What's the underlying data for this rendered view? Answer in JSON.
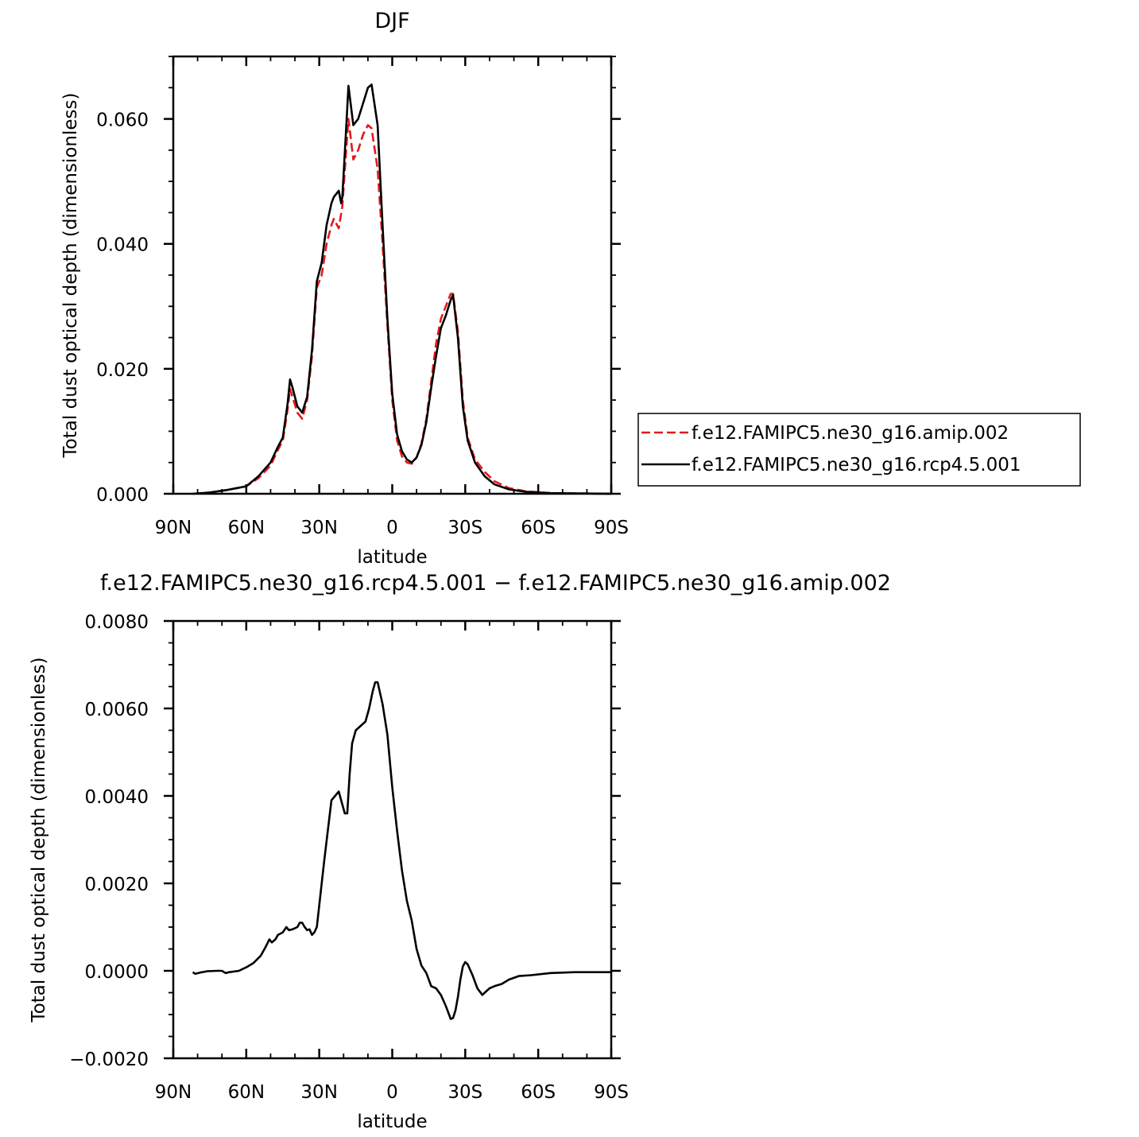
{
  "chart_data": [
    {
      "type": "line",
      "title": "DJF",
      "xlabel": "latitude",
      "ylabel": "Total dust optical depth (dimensionless)",
      "xlim": [
        90,
        -90
      ],
      "ylim": [
        0,
        0.07
      ],
      "x_ticks": [
        {
          "value": 90,
          "label": "90N"
        },
        {
          "value": 60,
          "label": "60N"
        },
        {
          "value": 30,
          "label": "30N"
        },
        {
          "value": 0,
          "label": "0"
        },
        {
          "value": -30,
          "label": "30S"
        },
        {
          "value": -60,
          "label": "60S"
        },
        {
          "value": -90,
          "label": "90S"
        }
      ],
      "y_ticks": [
        {
          "value": 0.0,
          "label": "0.000"
        },
        {
          "value": 0.02,
          "label": "0.020"
        },
        {
          "value": 0.04,
          "label": "0.040"
        },
        {
          "value": 0.06,
          "label": "0.060"
        }
      ],
      "legend_position": "right",
      "series": [
        {
          "name": "f.e12.FAMIPC5.ne30_g16.amip.002",
          "color": "#e41a1c",
          "dash": "dashed",
          "points": [
            [
              82,
              0.0
            ],
            [
              75,
              0.0002
            ],
            [
              68,
              0.0006
            ],
            [
              60,
              0.0012
            ],
            [
              55,
              0.0025
            ],
            [
              50,
              0.0045
            ],
            [
              47,
              0.007
            ],
            [
              45,
              0.0085
            ],
            [
              43,
              0.0135
            ],
            [
              42,
              0.0168
            ],
            [
              41,
              0.0155
            ],
            [
              39,
              0.013
            ],
            [
              37,
              0.012
            ],
            [
              35,
              0.015
            ],
            [
              33,
              0.022
            ],
            [
              31,
              0.033
            ],
            [
              29,
              0.035
            ],
            [
              27,
              0.04
            ],
            [
              25,
              0.043
            ],
            [
              24,
              0.044
            ],
            [
              22,
              0.0425
            ],
            [
              20.5,
              0.046
            ],
            [
              19,
              0.0545
            ],
            [
              18,
              0.06
            ],
            [
              16,
              0.0535
            ],
            [
              14,
              0.055
            ],
            [
              12,
              0.0575
            ],
            [
              10,
              0.059
            ],
            [
              8.5,
              0.0585
            ],
            [
              6,
              0.052
            ],
            [
              4,
              0.04
            ],
            [
              2,
              0.027
            ],
            [
              0,
              0.015
            ],
            [
              -2,
              0.0085
            ],
            [
              -4,
              0.006
            ],
            [
              -6,
              0.005
            ],
            [
              -8,
              0.0048
            ],
            [
              -10,
              0.0058
            ],
            [
              -12,
              0.008
            ],
            [
              -14,
              0.012
            ],
            [
              -16,
              0.018
            ],
            [
              -18,
              0.024
            ],
            [
              -20,
              0.028
            ],
            [
              -22,
              0.03
            ],
            [
              -24,
              0.032
            ],
            [
              -25,
              0.032
            ],
            [
              -27,
              0.026
            ],
            [
              -29,
              0.015
            ],
            [
              -31,
              0.009
            ],
            [
              -34,
              0.0055
            ],
            [
              -38,
              0.0035
            ],
            [
              -42,
              0.002
            ],
            [
              -48,
              0.0009
            ],
            [
              -55,
              0.0004
            ],
            [
              -65,
              0.0001
            ],
            [
              -90,
              0.0
            ]
          ]
        },
        {
          "name": "f.e12.FAMIPC5.ne30_g16.rcp4.5.001",
          "color": "#000000",
          "dash": "solid",
          "points": [
            [
              82,
              0.0
            ],
            [
              75,
              0.0002
            ],
            [
              68,
              0.0006
            ],
            [
              60,
              0.0012
            ],
            [
              55,
              0.0028
            ],
            [
              50,
              0.005
            ],
            [
              47,
              0.0075
            ],
            [
              45,
              0.009
            ],
            [
              43,
              0.0145
            ],
            [
              42,
              0.0183
            ],
            [
              41,
              0.017
            ],
            [
              39,
              0.014
            ],
            [
              37,
              0.013
            ],
            [
              35,
              0.0155
            ],
            [
              33,
              0.023
            ],
            [
              31,
              0.034
            ],
            [
              29,
              0.037
            ],
            [
              27,
              0.043
            ],
            [
              25,
              0.0465
            ],
            [
              24,
              0.0475
            ],
            [
              22,
              0.0485
            ],
            [
              21,
              0.0465
            ],
            [
              20.5,
              0.0475
            ],
            [
              19,
              0.058
            ],
            [
              18,
              0.0653
            ],
            [
              16,
              0.059
            ],
            [
              14,
              0.06
            ],
            [
              12,
              0.0625
            ],
            [
              10,
              0.065
            ],
            [
              8.5,
              0.0655
            ],
            [
              6,
              0.059
            ],
            [
              4,
              0.043
            ],
            [
              2,
              0.028
            ],
            [
              0,
              0.016
            ],
            [
              -2,
              0.0095
            ],
            [
              -4,
              0.0068
            ],
            [
              -6,
              0.0055
            ],
            [
              -8,
              0.005
            ],
            [
              -10,
              0.0058
            ],
            [
              -12,
              0.0078
            ],
            [
              -14,
              0.0115
            ],
            [
              -16,
              0.017
            ],
            [
              -18,
              0.022
            ],
            [
              -20,
              0.0265
            ],
            [
              -22,
              0.0285
            ],
            [
              -24,
              0.031
            ],
            [
              -25,
              0.0318
            ],
            [
              -27,
              0.025
            ],
            [
              -29,
              0.014
            ],
            [
              -31,
              0.0085
            ],
            [
              -34,
              0.005
            ],
            [
              -38,
              0.0028
            ],
            [
              -42,
              0.0015
            ],
            [
              -48,
              0.0007
            ],
            [
              -55,
              0.0003
            ],
            [
              -65,
              0.0001
            ],
            [
              -90,
              0.0
            ]
          ]
        }
      ]
    },
    {
      "type": "line",
      "title": "f.e12.FAMIPC5.ne30_g16.rcp4.5.001 − f.e12.FAMIPC5.ne30_g16.amip.002",
      "xlabel": "latitude",
      "ylabel": "Total dust optical depth (dimensionless)",
      "xlim": [
        90,
        -90
      ],
      "ylim": [
        -0.002,
        0.008
      ],
      "x_ticks": [
        {
          "value": 90,
          "label": "90N"
        },
        {
          "value": 60,
          "label": "60N"
        },
        {
          "value": 30,
          "label": "30N"
        },
        {
          "value": 0,
          "label": "0"
        },
        {
          "value": -30,
          "label": "30S"
        },
        {
          "value": -60,
          "label": "60S"
        },
        {
          "value": -90,
          "label": "90S"
        }
      ],
      "y_ticks": [
        {
          "value": -0.002,
          "label": "−0.0020"
        },
        {
          "value": 0.0,
          "label": "0.0000"
        },
        {
          "value": 0.002,
          "label": "0.0020"
        },
        {
          "value": 0.004,
          "label": "0.0040"
        },
        {
          "value": 0.006,
          "label": "0.0060"
        },
        {
          "value": 0.008,
          "label": "0.0080"
        }
      ],
      "series": [
        {
          "name": "",
          "color": "#000000",
          "dash": "solid",
          "points": [
            [
              82,
              -3e-05
            ],
            [
              81,
              -7e-05
            ],
            [
              79,
              -4e-05
            ],
            [
              76,
              -1e-05
            ],
            [
              72,
              0.0
            ],
            [
              70,
              0.0
            ],
            [
              68.5,
              -5e-05
            ],
            [
              67,
              -3e-05
            ],
            [
              63,
              0.0
            ],
            [
              60,
              8e-05
            ],
            [
              57,
              0.00018
            ],
            [
              54,
              0.00035
            ],
            [
              52,
              0.00055
            ],
            [
              50.5,
              0.00072
            ],
            [
              49.5,
              0.00065
            ],
            [
              48,
              0.00072
            ],
            [
              47,
              0.00082
            ],
            [
              45,
              0.00088
            ],
            [
              43.5,
              0.001
            ],
            [
              42.5,
              0.00093
            ],
            [
              41,
              0.00095
            ],
            [
              39,
              0.001
            ],
            [
              38,
              0.0011
            ],
            [
              37,
              0.0011
            ],
            [
              36,
              0.001
            ],
            [
              35,
              0.00093
            ],
            [
              34,
              0.00095
            ],
            [
              33,
              0.00082
            ],
            [
              32,
              0.00088
            ],
            [
              31,
              0.001
            ],
            [
              28,
              0.0025
            ],
            [
              25,
              0.0039
            ],
            [
              23.5,
              0.004
            ],
            [
              22,
              0.0041
            ],
            [
              21,
              0.0039
            ],
            [
              19.5,
              0.0036
            ],
            [
              18.5,
              0.0036
            ],
            [
              17.5,
              0.0045
            ],
            [
              16.5,
              0.0052
            ],
            [
              15,
              0.0055
            ],
            [
              13,
              0.0056
            ],
            [
              11,
              0.0057
            ],
            [
              9.5,
              0.006
            ],
            [
              8,
              0.0064
            ],
            [
              7,
              0.0066
            ],
            [
              6,
              0.0066
            ],
            [
              4,
              0.0061
            ],
            [
              2,
              0.0054
            ],
            [
              0,
              0.0042
            ],
            [
              -2,
              0.0032
            ],
            [
              -4,
              0.0023
            ],
            [
              -6,
              0.0016
            ],
            [
              -8,
              0.00115
            ],
            [
              -10,
              0.0005
            ],
            [
              -12,
              0.00012
            ],
            [
              -14,
              -5e-05
            ],
            [
              -16,
              -0.00035
            ],
            [
              -18,
              -0.0004
            ],
            [
              -20,
              -0.00055
            ],
            [
              -22,
              -0.0008
            ],
            [
              -24,
              -0.0011
            ],
            [
              -25,
              -0.00108
            ],
            [
              -26,
              -0.0009
            ],
            [
              -27,
              -0.0006
            ],
            [
              -28,
              -0.0002
            ],
            [
              -29,
              0.0001
            ],
            [
              -30,
              0.0002
            ],
            [
              -31,
              0.00015
            ],
            [
              -33,
              -0.0001
            ],
            [
              -35,
              -0.0004
            ],
            [
              -37,
              -0.00055
            ],
            [
              -38,
              -0.0005
            ],
            [
              -40,
              -0.0004
            ],
            [
              -42,
              -0.00035
            ],
            [
              -45,
              -0.0003
            ],
            [
              -48,
              -0.0002
            ],
            [
              -52,
              -0.00012
            ],
            [
              -57,
              -0.0001
            ],
            [
              -65,
              -5e-05
            ],
            [
              -75,
              -3e-05
            ],
            [
              -90,
              -3e-05
            ]
          ]
        }
      ]
    }
  ]
}
